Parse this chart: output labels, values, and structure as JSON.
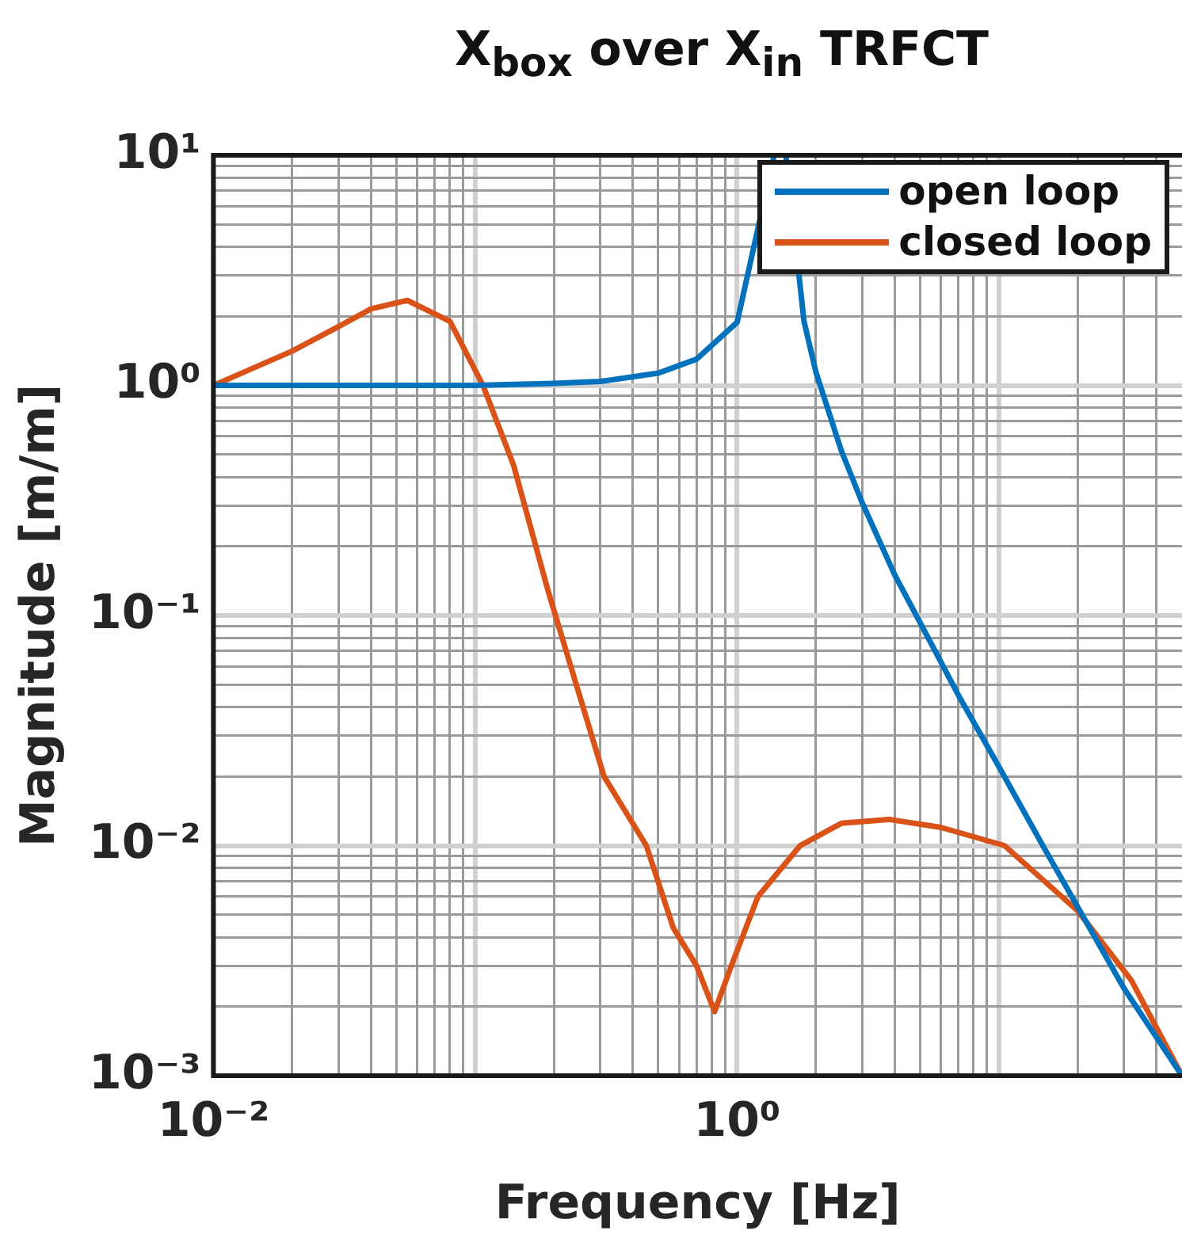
{
  "chart_data": {
    "type": "line",
    "title": "X$_{box}$ over X$_{in}$ TRFCT",
    "xlabel": "Frequency [Hz]",
    "ylabel": "Magnitude [m/m]",
    "log": "xy",
    "grid": true,
    "legend": "top right",
    "xlim": [
      0.01,
      50
    ],
    "ylim": [
      0.001,
      10
    ],
    "xticks": [
      {
        "value": 0.01,
        "label": "10⁻²"
      },
      {
        "value": 0.02,
        "label": null
      },
      {
        "value": 0.03,
        "label": null
      },
      {
        "value": 0.04,
        "label": null
      },
      {
        "value": 0.05,
        "label": null
      },
      {
        "value": 0.06,
        "label": null
      },
      {
        "value": 0.07,
        "label": null
      },
      {
        "value": 0.08,
        "label": null
      },
      {
        "value": 0.09,
        "label": null
      },
      {
        "value": 0.1,
        "label": null
      },
      {
        "value": 0.2,
        "label": null
      },
      {
        "value": 0.3,
        "label": null
      },
      {
        "value": 0.4,
        "label": null
      },
      {
        "value": 0.5,
        "label": null
      },
      {
        "value": 0.6,
        "label": null
      },
      {
        "value": 0.7,
        "label": null
      },
      {
        "value": 0.8,
        "label": null
      },
      {
        "value": 0.9,
        "label": null
      },
      {
        "value": 1,
        "label": "10⁰"
      },
      {
        "value": 2,
        "label": null
      },
      {
        "value": 3,
        "label": null
      },
      {
        "value": 4,
        "label": null
      },
      {
        "value": 5,
        "label": null
      },
      {
        "value": 6,
        "label": null
      },
      {
        "value": 7,
        "label": null
      },
      {
        "value": 8,
        "label": null
      },
      {
        "value": 9,
        "label": null
      },
      {
        "value": 10,
        "label": null
      },
      {
        "value": 20,
        "label": null
      },
      {
        "value": 30,
        "label": null
      },
      {
        "value": 40,
        "label": null
      }
    ],
    "yticks": [
      {
        "value": 0.001,
        "label": "10⁻³"
      },
      {
        "value": 0.002,
        "label": null
      },
      {
        "value": 0.003,
        "label": null
      },
      {
        "value": 0.004,
        "label": null
      },
      {
        "value": 0.005,
        "label": null
      },
      {
        "value": 0.006,
        "label": null
      },
      {
        "value": 0.007,
        "label": null
      },
      {
        "value": 0.008,
        "label": null
      },
      {
        "value": 0.009,
        "label": null
      },
      {
        "value": 0.01,
        "label": "10⁻²"
      },
      {
        "value": 0.02,
        "label": null
      },
      {
        "value": 0.03,
        "label": null
      },
      {
        "value": 0.04,
        "label": null
      },
      {
        "value": 0.05,
        "label": null
      },
      {
        "value": 0.06,
        "label": null
      },
      {
        "value": 0.07,
        "label": null
      },
      {
        "value": 0.08,
        "label": null
      },
      {
        "value": 0.09,
        "label": null
      },
      {
        "value": 0.1,
        "label": "10⁻¹"
      },
      {
        "value": 0.2,
        "label": null
      },
      {
        "value": 0.3,
        "label": null
      },
      {
        "value": 0.4,
        "label": null
      },
      {
        "value": 0.5,
        "label": null
      },
      {
        "value": 0.6,
        "label": null
      },
      {
        "value": 0.7,
        "label": null
      },
      {
        "value": 0.8,
        "label": null
      },
      {
        "value": 0.9,
        "label": null
      },
      {
        "value": 1,
        "label": "10⁰"
      },
      {
        "value": 2,
        "label": null
      },
      {
        "value": 3,
        "label": null
      },
      {
        "value": 4,
        "label": null
      },
      {
        "value": 5,
        "label": null
      },
      {
        "value": 6,
        "label": null
      },
      {
        "value": 7,
        "label": null
      },
      {
        "value": 8,
        "label": null
      },
      {
        "value": 9,
        "label": null
      },
      {
        "value": 10,
        "label": "10¹"
      }
    ],
    "series": [
      {
        "name": "open loop",
        "color": "#0072bd",
        "x": [
          0.01,
          0.1,
          0.2,
          0.3,
          0.5,
          0.7,
          1,
          1.385,
          1.46,
          1.535,
          1.8,
          2,
          2.5,
          3,
          4,
          5,
          7,
          10,
          15,
          20,
          30,
          50
        ],
        "values": [
          1,
          1,
          1.02,
          1.04,
          1.13,
          1.3,
          1.88,
          10,
          null,
          10,
          1.9,
          1.14,
          0.52,
          0.31,
          0.15,
          0.093,
          0.045,
          0.022,
          0.0096,
          0.0054,
          0.0024,
          0.001
        ]
      },
      {
        "name": "closed loop",
        "color": "#d95319",
        "x": [
          0.01,
          0.02,
          0.03,
          0.04,
          0.055,
          0.08,
          0.107,
          0.14,
          0.19,
          0.25,
          0.31,
          0.45,
          0.57,
          0.7,
          0.82,
          0.95,
          1.2,
          1.74,
          2.5,
          3.8,
          6,
          10.5,
          20,
          32,
          50
        ],
        "values": [
          1,
          1.41,
          1.8,
          2.15,
          2.34,
          1.9,
          1,
          0.45,
          0.127,
          0.045,
          0.02,
          0.01,
          0.0044,
          0.003,
          0.0019,
          0.003,
          0.006,
          0.01,
          0.0125,
          0.013,
          0.012,
          0.01,
          0.0052,
          0.0026,
          0.001
        ]
      }
    ]
  }
}
